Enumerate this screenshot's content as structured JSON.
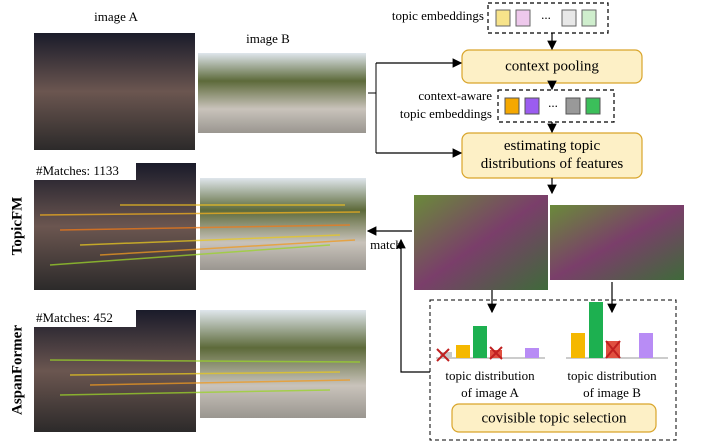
{
  "labels": {
    "image_a": "image A",
    "image_b": "image B",
    "topic_embeddings": "topic embeddings",
    "context_pooling": "context pooling",
    "context_aware": [
      "context-aware",
      "topic embeddings"
    ],
    "estimating": [
      "estimating topic",
      "distributions of features"
    ],
    "match": "match",
    "ellipsis": "...",
    "dist_a": [
      "topic distribution",
      "of image A"
    ],
    "dist_b": [
      "topic distribution",
      "of image B"
    ],
    "selection": "covisible topic selection"
  },
  "rows": [
    {
      "method": "TopicFM",
      "matches": "#Matches: 1133"
    },
    {
      "method": "AspanFormer",
      "matches": "#Matches: 452"
    }
  ]
}
